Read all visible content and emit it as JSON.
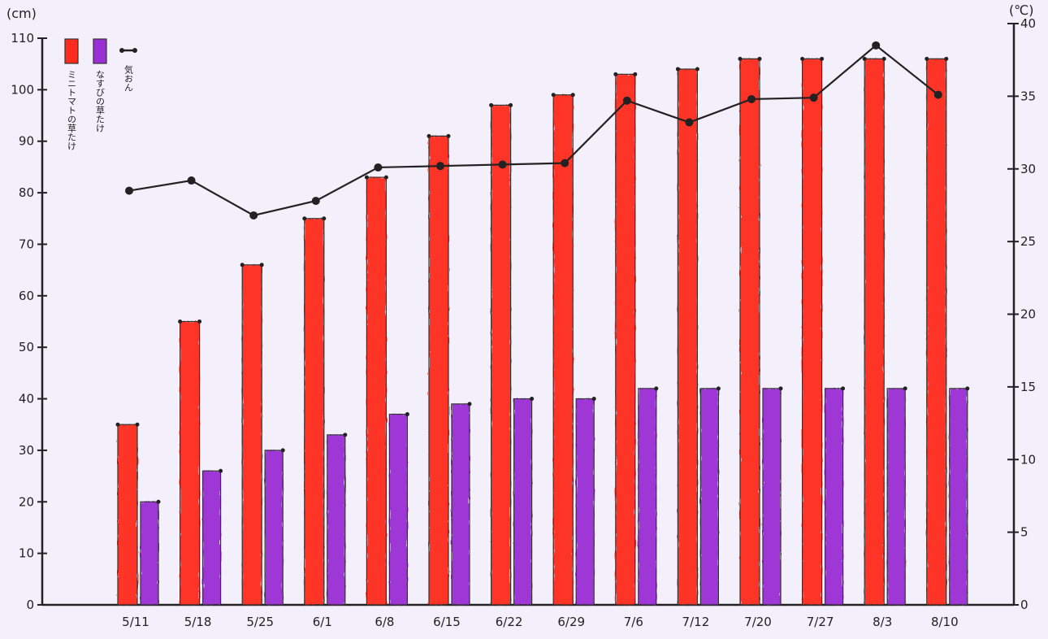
{
  "chart_data": {
    "type": "bar",
    "categories": [
      "5/11",
      "5/18",
      "5/25",
      "6/1",
      "6/8",
      "6/15",
      "6/22",
      "6/29",
      "7/6",
      "7/12",
      "7/20",
      "7/27",
      "8/3",
      "8/10"
    ],
    "series": [
      {
        "name": "ミニトマトの草たけ",
        "axis": "left",
        "color": "#ff2b1f",
        "values": [
          35,
          55,
          66,
          75,
          83,
          91,
          97,
          99,
          103,
          104,
          106,
          106,
          106,
          106
        ]
      },
      {
        "name": "なすびの草たけ",
        "axis": "left",
        "color": "#9b2fd6",
        "values": [
          20,
          26,
          30,
          33,
          37,
          39,
          40,
          40,
          42,
          42,
          42,
          42,
          42,
          42
        ]
      },
      {
        "name": "気おん",
        "axis": "right",
        "type": "line",
        "color": "#222222",
        "values": [
          28.5,
          29.2,
          26.8,
          27.8,
          30.1,
          30.2,
          30.3,
          30.4,
          34.7,
          33.2,
          34.8,
          34.9,
          38.5,
          35.1
        ]
      }
    ],
    "ylabel_left": "(cm)",
    "ylabel_right": "(℃)",
    "ylim_left": [
      0,
      110
    ],
    "yticks_left": [
      0,
      10,
      20,
      30,
      40,
      50,
      60,
      70,
      80,
      90,
      100,
      110
    ],
    "ylim_right": [
      0,
      40
    ],
    "yticks_right": [
      0,
      5,
      10,
      15,
      20,
      25,
      30,
      35,
      40
    ],
    "grid": false,
    "legend_position": "top-left"
  }
}
